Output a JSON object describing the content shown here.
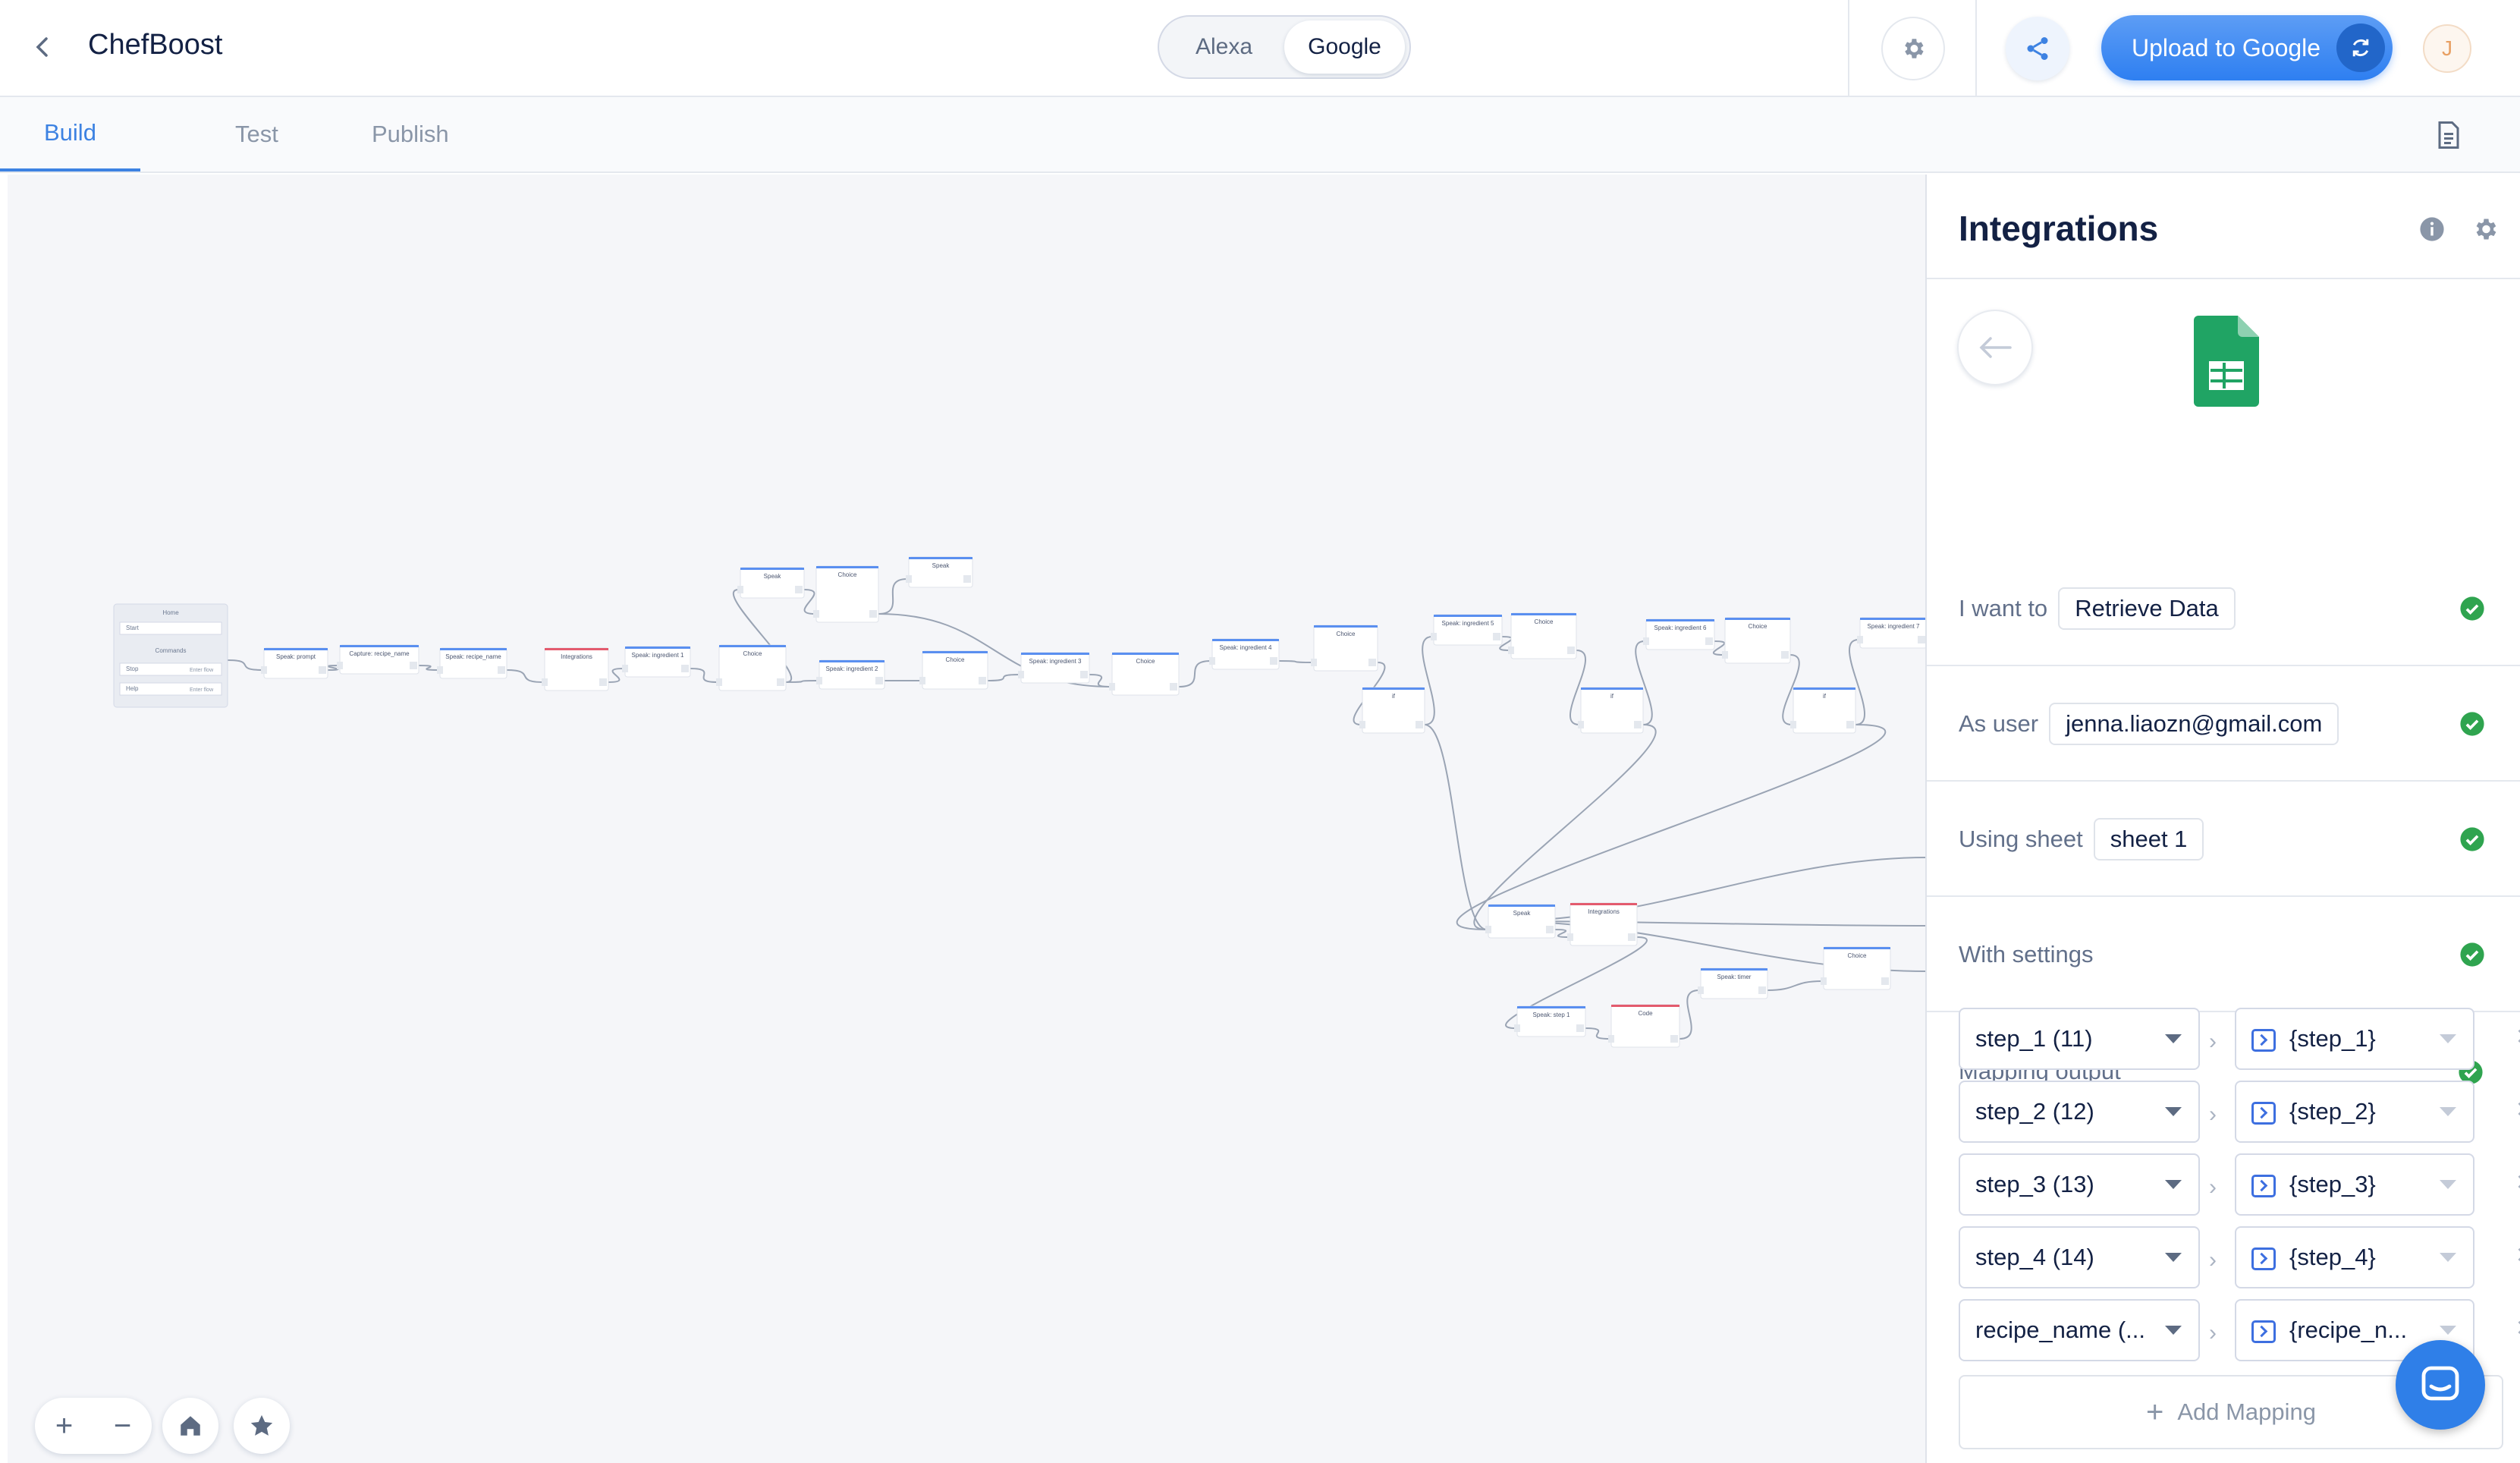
{
  "header": {
    "title": "ChefBoost",
    "platforms": [
      "Alexa",
      "Google"
    ],
    "active_platform": "Google",
    "upload_label": "Upload to Google",
    "avatar_initial": "J"
  },
  "tabs": [
    "Build",
    "Test",
    "Publish"
  ],
  "active_tab": "Build",
  "canvas": {
    "home_block": {
      "title": "Home",
      "start_label": "Start",
      "commands_label": "Commands",
      "stop_label": "Stop",
      "help_label": "Help",
      "enter_flow": "Enter flow"
    },
    "nodes": [
      "Speak: prompt",
      "Capture: recipe_name",
      "Speak: recipe_name",
      "Integrations",
      "Speak: ingredient 1",
      "Choice",
      "Speak",
      "Choice",
      "Speak",
      "Speak: ingredient 2",
      "Choice",
      "Speak: ingredient 3",
      "Choice",
      "Speak: ingredient 4",
      "Choice",
      "if",
      "Speak: ingredient 5",
      "Choice",
      "if",
      "Speak: ingredient 6",
      "Choice",
      "if",
      "Speak: ingredient 7",
      "Speak",
      "Integrations",
      "Speak: timer",
      "Choice",
      "Speak: step 1",
      "Code"
    ],
    "zoom_in": "+",
    "zoom_out": "−"
  },
  "panel": {
    "title": "Integrations",
    "rows": [
      {
        "label": "I want to",
        "value": "Retrieve Data"
      },
      {
        "label": "As user",
        "value": "jenna.liaozn@gmail.com"
      },
      {
        "label": "Using sheet",
        "value": "sheet 1"
      },
      {
        "label": "With settings",
        "value": ""
      }
    ],
    "mapping_title": "Mapping output",
    "mappings": [
      {
        "column": "step_1 (11)",
        "variable": "{step_1}"
      },
      {
        "column": "step_2 (12)",
        "variable": "{step_2}"
      },
      {
        "column": "step_3 (13)",
        "variable": "{step_3}"
      },
      {
        "column": "step_4 (14)",
        "variable": "{step_4}"
      },
      {
        "column": "recipe_name (...",
        "variable": "{recipe_n..."
      }
    ],
    "add_mapping": "Add Mapping"
  },
  "colors": {
    "accent": "#3d82e2",
    "success": "#2fa44f",
    "sheets": "#20a464"
  }
}
